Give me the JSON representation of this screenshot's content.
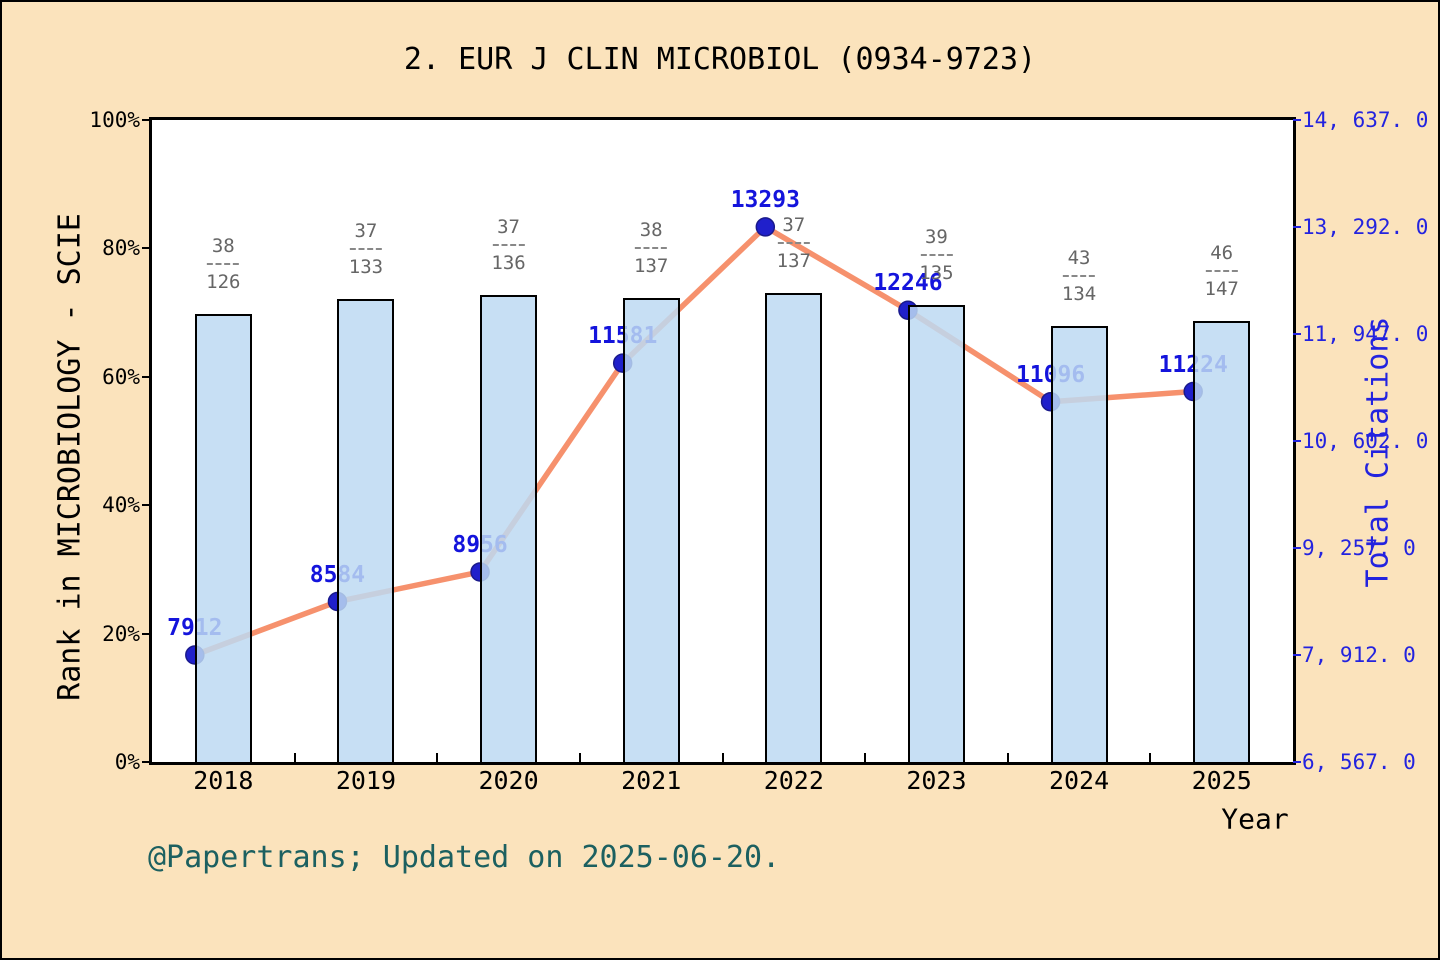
{
  "title": "2. EUR J CLIN MICROBIOL (0934-9723)",
  "footer": "@Papertrans; Updated on 2025-06-20.",
  "axes": {
    "left": {
      "label": "Rank in MICROBIOLOGY - SCIE",
      "tick_labels": [
        "0%",
        "20%",
        "40%",
        "60%",
        "80%",
        "100%"
      ],
      "lim": [
        0,
        100
      ]
    },
    "right": {
      "label": "Total Citations",
      "tick_labels": [
        "6, 567. 0",
        "7, 912. 0",
        "9, 257. 0",
        "10, 602. 0",
        "11, 947. 0",
        "13, 292. 0",
        "14, 637. 0"
      ],
      "lim": [
        6567,
        14637
      ]
    },
    "x": {
      "label": "Year",
      "tick_labels": [
        "2018",
        "2019",
        "2020",
        "2021",
        "2022",
        "2023",
        "2024",
        "2025"
      ]
    }
  },
  "chart_data": {
    "type": "bar+line",
    "title": "2. EUR J CLIN MICROBIOL (0934-9723)",
    "categories": [
      "2018",
      "2019",
      "2020",
      "2021",
      "2022",
      "2023",
      "2024",
      "2025"
    ],
    "series": [
      {
        "name": "Rank in MICROBIOLOGY - SCIE",
        "type": "bar",
        "axis": "left",
        "rank": [
          38,
          37,
          37,
          38,
          37,
          39,
          43,
          46
        ],
        "total": [
          126,
          133,
          136,
          137,
          137,
          135,
          134,
          147
        ],
        "percentile_pct": [
          69.8,
          72.2,
          72.8,
          72.3,
          73.0,
          71.1,
          67.9,
          68.7
        ],
        "labels": [
          "38/126",
          "37/133",
          "37/136",
          "38/137",
          "37/137",
          "39/135",
          "43/134",
          "46/147"
        ]
      },
      {
        "name": "Total Citations",
        "type": "line",
        "axis": "right",
        "values": [
          7912,
          8584,
          8956,
          11581,
          13293,
          12246,
          11096,
          11224
        ],
        "labels": [
          "7912",
          "8584",
          "8956",
          "11581",
          "13293",
          "12246",
          "11096",
          "11224"
        ]
      }
    ],
    "xlabel": "Year",
    "ylabel_left": "Rank in MICROBIOLOGY - SCIE",
    "ylabel_right": "Total Citations",
    "ylim_left": [
      0,
      100
    ],
    "ylim_right": [
      6567,
      14637
    ],
    "grid": false,
    "legend": false
  },
  "colors": {
    "background": "#FBE3BC",
    "plot_background": "#FFFFFF",
    "axis": "#000000",
    "bar_fill_rgba": "rgba(189,217,242,0.85)",
    "bar_border": "#000000",
    "line": "#F6916D",
    "marker_fill": "#2020CB",
    "marker_stroke": "#1A1A8C",
    "citation_label": "#1414DC",
    "fraction_label": "#666666",
    "right_axis": "#2323DF",
    "footer": "#1C6060"
  }
}
